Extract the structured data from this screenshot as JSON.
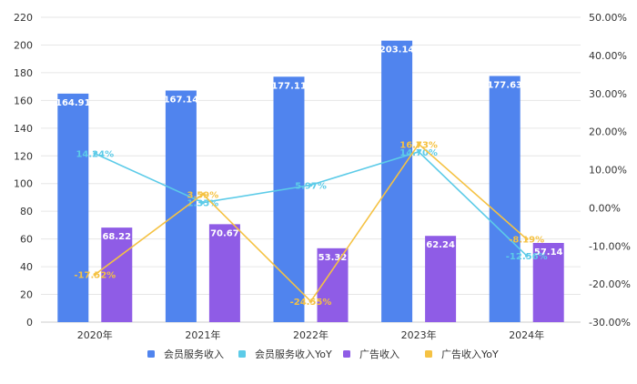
{
  "chart_data": {
    "type": "bar",
    "categories": [
      "2020年",
      "2021年",
      "2022年",
      "2023年",
      "2024年"
    ],
    "series": [
      {
        "name": "会员服务收入",
        "kind": "bar",
        "axis": "left",
        "color": "#5084ee",
        "values": [
          164.91,
          167.14,
          177.11,
          203.14,
          177.63
        ],
        "labels": [
          "164.91",
          "167.14",
          "177.11",
          "203.14",
          "177.63"
        ]
      },
      {
        "name": "会员服务收入YoY",
        "kind": "line",
        "axis": "right",
        "color": "#5ccbe8",
        "values": [
          14.24,
          1.35,
          5.97,
          14.7,
          -12.56
        ],
        "labels": [
          "14.24%",
          "1.35%",
          "5.97%",
          "14.70%",
          "-12.56%"
        ]
      },
      {
        "name": "广告收入",
        "kind": "bar",
        "axis": "left",
        "color": "#8f5ce6",
        "values": [
          68.22,
          70.67,
          53.32,
          62.24,
          57.14
        ],
        "labels": [
          "68.22",
          "70.67",
          "53.32",
          "62.24",
          "57.14"
        ]
      },
      {
        "name": "广告收入YoY",
        "kind": "line",
        "axis": "right",
        "color": "#f5c243",
        "values": [
          -17.52,
          3.59,
          -24.55,
          16.73,
          -8.19
        ],
        "labels": [
          "-17.52%",
          "3.59%",
          "-24.55%",
          "16.73%",
          "-8.19%"
        ]
      }
    ],
    "y_left": {
      "min": 0,
      "max": 220,
      "ticks": [
        "0",
        "20",
        "40",
        "60",
        "80",
        "100",
        "120",
        "140",
        "160",
        "180",
        "200",
        "220"
      ]
    },
    "y_right": {
      "min": -30,
      "max": 50,
      "ticks": [
        "-30.00%",
        "-20.00%",
        "-10.00%",
        "0.00%",
        "10.00%",
        "20.00%",
        "30.00%",
        "40.00%",
        "50.00%"
      ]
    },
    "legend_position": "bottom",
    "grid": true
  }
}
